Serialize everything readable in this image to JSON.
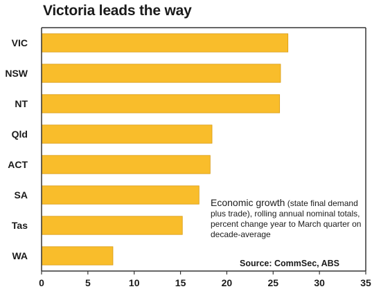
{
  "chart_data": {
    "type": "bar",
    "orientation": "horizontal",
    "title": "Victoria leads the way",
    "categories": [
      "VIC",
      "NSW",
      "NT",
      "Qld",
      "ACT",
      "SA",
      "Tas",
      "WA"
    ],
    "values": [
      26.6,
      25.8,
      25.7,
      18.4,
      18.2,
      17.0,
      15.2,
      7.7
    ],
    "xlim": [
      0,
      35
    ],
    "xticks": [
      0,
      5,
      10,
      15,
      20,
      25,
      30,
      35
    ],
    "xlabel": "",
    "ylabel": "",
    "grid": false,
    "legend": "none",
    "bar_color": "#f9bd2b",
    "bar_stroke": "#d89a10",
    "annotation": {
      "lead": "Economic growth",
      "text": " (state final demand plus trade), rolling annual nominal totals, percent change year to March quarter on decade-average"
    },
    "source": "Source: CommSec, ABS"
  }
}
